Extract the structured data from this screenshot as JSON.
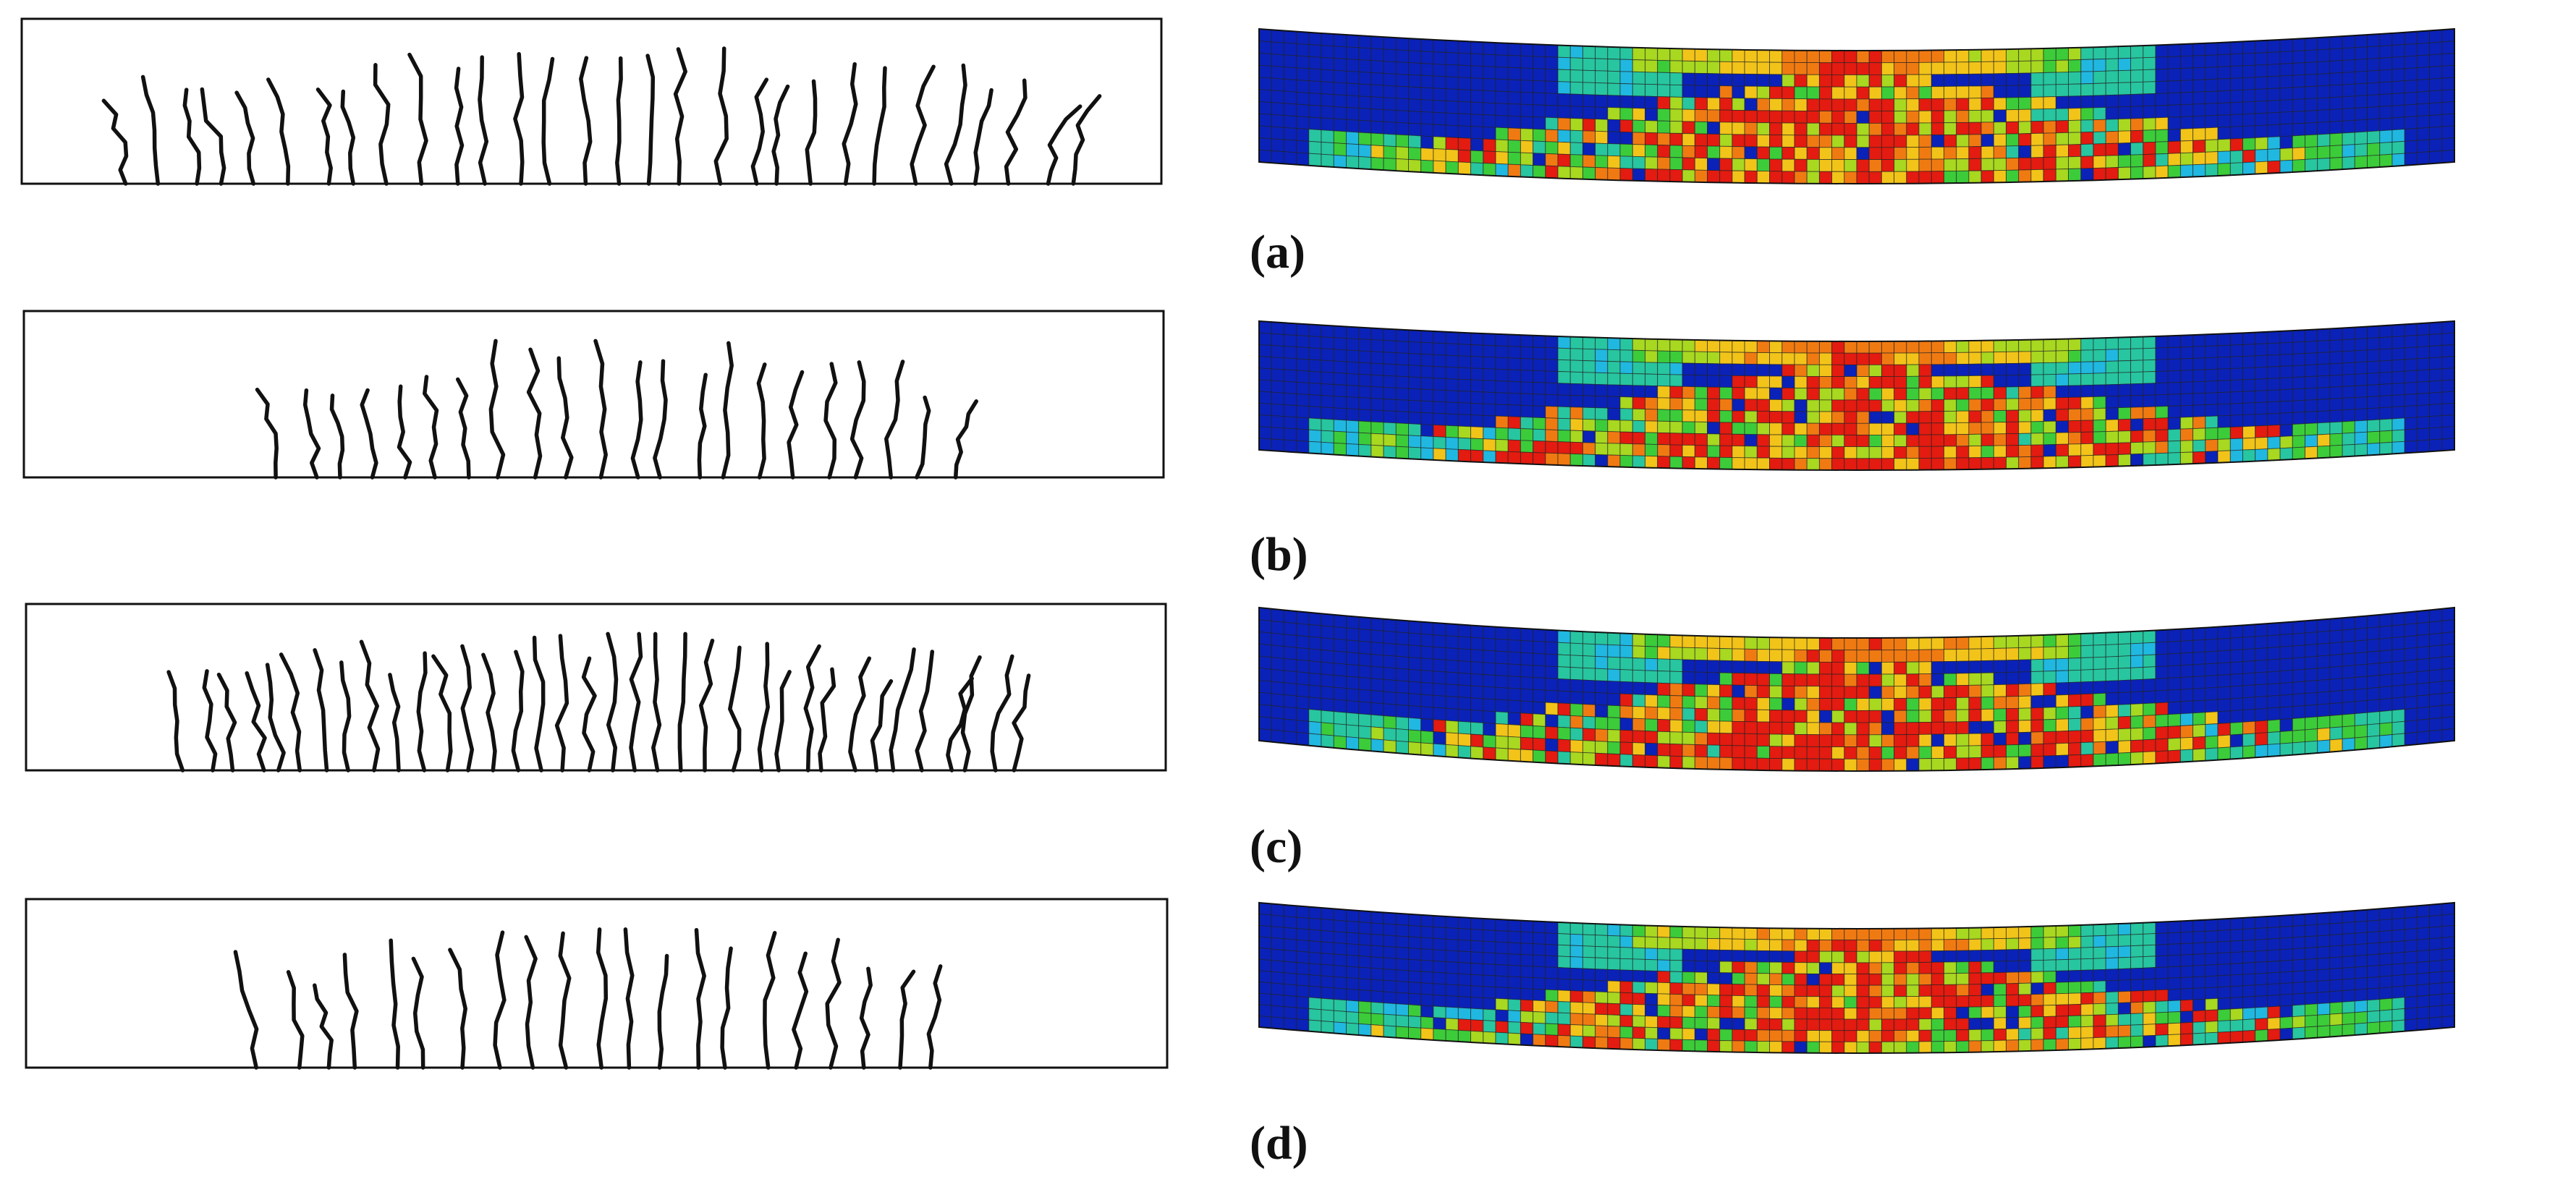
{
  "figure": {
    "panels": [
      {
        "label": "(a)",
        "crack_count": 30,
        "seed": 11,
        "crack_span": [
          0.08,
          0.94
        ]
      },
      {
        "label": "(b)",
        "crack_count": 22,
        "seed": 23,
        "crack_span": [
          0.21,
          0.83
        ]
      },
      {
        "label": "(c)",
        "crack_count": 36,
        "seed": 37,
        "crack_span": [
          0.13,
          0.88
        ]
      },
      {
        "label": "(d)",
        "crack_count": 21,
        "seed": 41,
        "crack_span": [
          0.19,
          0.81
        ]
      }
    ],
    "colormap": [
      "#0a22b8",
      "#1f62e6",
      "#20b8e0",
      "#27c6a0",
      "#3ccc3a",
      "#a8d820",
      "#f2c419",
      "#f07a12",
      "#e31b10"
    ],
    "background_color": "#0a22b8",
    "grid_color": "#222222"
  }
}
